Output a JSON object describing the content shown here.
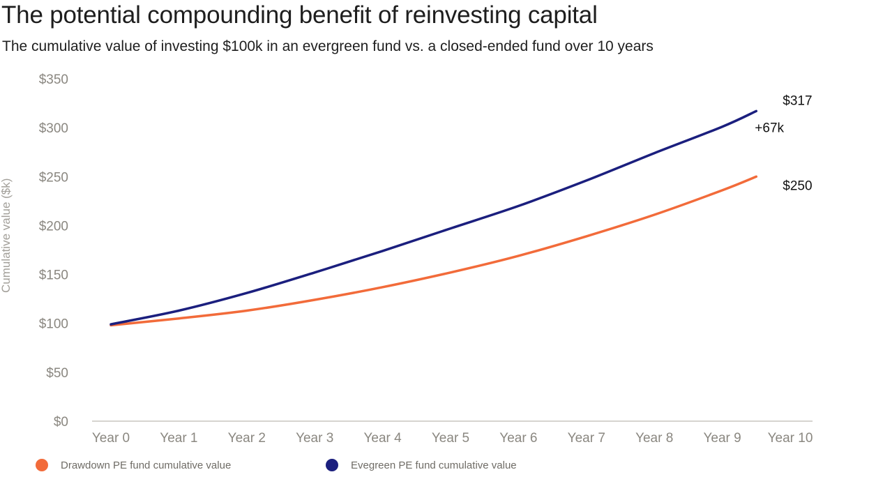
{
  "chart_data": {
    "type": "line",
    "title": "The potential compounding benefit of reinvesting capital",
    "subtitle": "The cumulative value of investing $100k in an evergreen fund vs. a closed-ended fund over 10 years",
    "ylabel": "Cumulative value ($k)",
    "xlabel": "",
    "categories": [
      "Year 0",
      "Year 1",
      "Year 2",
      "Year 3",
      "Year 4",
      "Year 5",
      "Year 6",
      "Year 7",
      "Year 8",
      "Year 9",
      "Year 10"
    ],
    "y_ticks": [
      "$0",
      "$50",
      "$100",
      "$150",
      "$200",
      "$250",
      "$300",
      "$350"
    ],
    "ylim": [
      0,
      350
    ],
    "grid": false,
    "legend_position": "bottom",
    "series": [
      {
        "name": "Drawdown PE fund cumulative value",
        "color": "#f26b3a",
        "x": [
          0,
          1,
          2,
          3,
          4,
          5,
          6,
          7,
          8,
          9,
          9.5
        ],
        "values": [
          98,
          105,
          113,
          124,
          137,
          152,
          169,
          189,
          211,
          236,
          250
        ]
      },
      {
        "name": "Evegreen PE fund cumulative value",
        "color": "#1b1f7e",
        "x": [
          0,
          1,
          2,
          3,
          4,
          5,
          6,
          7,
          8,
          9,
          9.5
        ],
        "values": [
          99,
          113,
          131,
          152,
          174,
          197,
          220,
          246,
          274,
          301,
          317
        ]
      }
    ],
    "annotations": {
      "evergreen_end": "$317",
      "difference": "+67k",
      "drawdown_end": "$250"
    }
  }
}
